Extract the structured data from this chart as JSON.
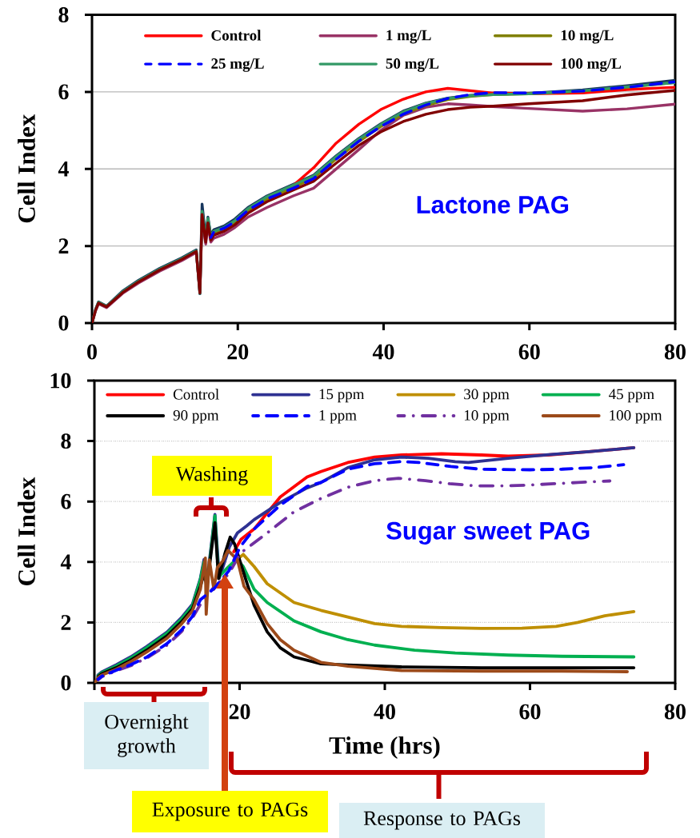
{
  "chart_data": [
    {
      "type": "line",
      "ylabel": "Cell Index",
      "annotations": [
        "Lactone PAG"
      ],
      "x": [
        0,
        0.5,
        0.9,
        2,
        4.2,
        6.4,
        9.3,
        12.3,
        14.3,
        14.8,
        15.1,
        15.6,
        15.9,
        16.3,
        16.7,
        18.1,
        19.6,
        21.4,
        24,
        27.6,
        30.4,
        33.5,
        36.6,
        39.6,
        42.7,
        45.8,
        48.8,
        51.9,
        55,
        59.9,
        67.3,
        73.4,
        80
      ],
      "series": [
        {
          "color": "#17365D",
          "values": [
            0,
            0.36,
            0.55,
            0.44,
            0.83,
            1.11,
            1.42,
            1.69,
            1.9,
            0.76,
            3.09,
            2.2,
            2.75,
            2.28,
            2.42,
            2.52,
            2.7,
            3.0,
            3.3,
            3.6,
            3.84,
            4.34,
            4.79,
            5.17,
            5.5,
            5.71,
            5.84,
            5.91,
            5.94,
            5.96,
            6.05,
            6.16,
            6.3
          ]
        },
        {
          "name": "Control",
          "color": "#FF0000",
          "values": [
            null,
            null,
            null,
            null,
            null,
            null,
            null,
            null,
            null,
            null,
            null,
            null,
            null,
            null,
            null,
            null,
            null,
            null,
            null,
            3.57,
            4.03,
            4.67,
            5.16,
            5.54,
            5.81,
            6.0,
            6.09,
            6.03,
            5.97,
            5.95,
            5.97,
            6.06,
            6.12
          ]
        },
        {
          "name": "1 mg/L",
          "color": "#993366",
          "values": [
            0,
            0.32,
            0.5,
            0.4,
            0.77,
            1.04,
            1.35,
            1.62,
            1.83,
            0.82,
            2.7,
            2.05,
            2.55,
            2.1,
            2.2,
            2.3,
            2.48,
            2.75,
            3.0,
            3.3,
            3.5,
            4.0,
            4.5,
            5.0,
            5.39,
            5.6,
            5.69,
            5.66,
            5.62,
            5.57,
            5.5,
            5.56,
            5.68
          ]
        },
        {
          "name": "10 mg/L",
          "color": "#808000",
          "values": [
            null,
            null,
            null,
            null,
            null,
            null,
            null,
            null,
            null,
            null,
            null,
            null,
            null,
            2.2,
            2.34,
            2.44,
            2.61,
            2.92,
            3.22,
            3.52,
            3.77,
            4.26,
            4.71,
            5.1,
            5.42,
            5.65,
            5.8,
            5.88,
            5.93,
            5.95,
            6.02,
            6.12,
            6.24
          ]
        },
        {
          "name": "25 mg/L",
          "color": "#0000FF",
          "line_style": "dashed",
          "values": [
            null,
            null,
            null,
            null,
            null,
            null,
            null,
            null,
            null,
            null,
            null,
            null,
            null,
            2.22,
            2.36,
            2.46,
            2.63,
            2.93,
            3.22,
            3.5,
            3.75,
            4.25,
            4.72,
            5.1,
            5.42,
            5.66,
            5.83,
            5.93,
            5.98,
            5.97,
            6.02,
            6.12,
            6.26
          ]
        },
        {
          "name": "50 mg/L",
          "color": "#339966",
          "values": [
            0,
            0.35,
            0.54,
            0.43,
            0.81,
            1.09,
            1.4,
            1.67,
            1.88,
            0.77,
            2.9,
            2.17,
            2.72,
            2.24,
            2.38,
            2.48,
            2.66,
            2.97,
            3.28,
            3.58,
            3.82,
            4.32,
            4.77,
            5.15,
            5.48,
            5.7,
            5.83,
            5.9,
            5.93,
            5.95,
            6.03,
            6.13,
            6.24
          ]
        },
        {
          "name": "100 mg/L",
          "color": "#800000",
          "values": [
            0,
            0.34,
            0.52,
            0.42,
            0.79,
            1.07,
            1.38,
            1.65,
            1.86,
            0.78,
            2.82,
            2.1,
            2.6,
            2.15,
            2.28,
            2.38,
            2.55,
            2.85,
            3.15,
            3.45,
            3.68,
            4.15,
            4.61,
            4.96,
            5.23,
            5.42,
            5.54,
            5.6,
            5.63,
            5.69,
            5.77,
            5.92,
            6.04
          ]
        }
      ],
      "xlim": [
        0,
        80
      ],
      "ylim": [
        0,
        8
      ],
      "xticks": [
        0,
        20,
        40,
        60,
        80
      ],
      "yticks": [
        0,
        2,
        4,
        6,
        8
      ],
      "grid": "y",
      "legend": "top"
    },
    {
      "type": "line",
      "xlabel": "Time (hrs)",
      "ylabel": "Cell Index",
      "annotations": [
        "Washing",
        "Sugar sweet PAG",
        "Overnight growth",
        "Exposure to PAGs",
        "Response to PAGs"
      ],
      "series": [
        {
          "name": "Control",
          "color": "#FF0000",
          "x": [
            19.2,
            20.2,
            22,
            25.6,
            29.3,
            31.2,
            34.9,
            38.6,
            42.3,
            47.8,
            53.3,
            57,
            62.5,
            68.1,
            74.3
          ],
          "values": [
            4.34,
            4.75,
            5.09,
            6.15,
            6.81,
            6.99,
            7.29,
            7.47,
            7.54,
            7.58,
            7.54,
            7.5,
            7.54,
            7.65,
            7.78
          ]
        },
        {
          "name": "15 ppm",
          "color": "#2E3192",
          "x": [
            0.5,
            1,
            3,
            5,
            7.2,
            10,
            12,
            13.5,
            14.6,
            15.1,
            15.5,
            16.6,
            17.2,
            18.6,
            19.7,
            21,
            22,
            25.6,
            29.3,
            31.2,
            34.9,
            38.6,
            42.3,
            46,
            49.7,
            51.5,
            53.3,
            57,
            62.5,
            68.1,
            74.3
          ],
          "values": [
            0.26,
            0.36,
            0.6,
            0.86,
            1.2,
            1.68,
            2.16,
            2.6,
            3.46,
            4.08,
            3.35,
            5.57,
            3.46,
            4.5,
            4.96,
            5.2,
            5.4,
            5.97,
            6.45,
            6.63,
            7.12,
            7.38,
            7.47,
            7.43,
            7.32,
            7.29,
            7.34,
            7.43,
            7.55,
            7.65,
            7.78
          ]
        },
        {
          "name": "30 ppm",
          "color": "#BF8F00",
          "x": [
            19.5,
            20.5,
            22,
            23.8,
            27.5,
            31.2,
            34.9,
            38.6,
            42.3,
            47.8,
            53.3,
            58.9,
            63.6,
            66.6,
            70.3,
            74.3
          ],
          "values": [
            4.05,
            4.25,
            3.85,
            3.28,
            2.66,
            2.4,
            2.18,
            1.96,
            1.87,
            1.83,
            1.8,
            1.81,
            1.87,
            2.0,
            2.22,
            2.36
          ]
        },
        {
          "name": "45 ppm",
          "color": "#00B050",
          "x": [
            0.5,
            1,
            3,
            5,
            7.2,
            10,
            12,
            13.5,
            14.6,
            15.1,
            15.5,
            16.6,
            17.1,
            18.3,
            19.6,
            20.5,
            22,
            23.8,
            27.5,
            31.2,
            34.9,
            38.6,
            44.1,
            49.7,
            57,
            64.4,
            74.3
          ],
          "values": [
            0.23,
            0.33,
            0.56,
            0.82,
            1.16,
            1.64,
            2.11,
            2.55,
            3.42,
            4.0,
            3.2,
            5.53,
            3.5,
            3.8,
            4.1,
            3.85,
            3.1,
            2.66,
            2.05,
            1.69,
            1.43,
            1.25,
            1.08,
            0.99,
            0.92,
            0.88,
            0.86
          ]
        },
        {
          "name": "90 ppm",
          "color": "#000000",
          "x": [
            0.5,
            1,
            3,
            5,
            7.2,
            10,
            12,
            13.5,
            14.6,
            15.1,
            15.5,
            16.6,
            17.1,
            18,
            18.7,
            19.3,
            20.8,
            22,
            23.8,
            25.6,
            27.5,
            31.2,
            34.9,
            42.3,
            53.3,
            64.4,
            74.3
          ],
          "values": [
            0.2,
            0.3,
            0.5,
            0.75,
            1.08,
            1.55,
            2.02,
            2.45,
            3.2,
            3.6,
            3.2,
            5.3,
            3.45,
            4.3,
            4.82,
            4.6,
            3.46,
            2.57,
            1.69,
            1.16,
            0.86,
            0.63,
            0.59,
            0.53,
            0.5,
            0.5,
            0.5
          ]
        },
        {
          "name": "1 ppm",
          "color": "#0000FF",
          "line_style": "dashed",
          "x": [
            0.5,
            1,
            3,
            5,
            7.2,
            10,
            12,
            13.5,
            14.6,
            16.6,
            18.5,
            20.1,
            22,
            25.6,
            29.3,
            31.2,
            34.9,
            38.6,
            42.3,
            44.7,
            49.1,
            53.2,
            60,
            64.4,
            68.8,
            72.9
          ],
          "values": [
            0.12,
            0.22,
            0.42,
            0.6,
            0.85,
            1.3,
            1.75,
            2.2,
            2.75,
            3.15,
            3.7,
            4.51,
            5.09,
            5.88,
            6.5,
            6.63,
            7.07,
            7.25,
            7.32,
            7.29,
            7.16,
            7.07,
            7.05,
            7.07,
            7.12,
            7.22
          ]
        },
        {
          "name": "10 ppm",
          "color": "#7030A0",
          "line_style": "dashdot",
          "x": [
            0.5,
            1,
            3,
            5,
            7.2,
            10,
            12,
            13.5,
            14.6,
            16.4,
            18.5,
            20.1,
            23.8,
            27.5,
            31.2,
            34.9,
            38.6,
            41.9,
            45.6,
            48.9,
            52.6,
            56.3,
            59.6,
            63.3,
            66.6,
            71
          ],
          "values": [
            0.1,
            0.2,
            0.4,
            0.57,
            0.82,
            1.25,
            1.7,
            2.15,
            2.6,
            3.15,
            3.6,
            4.29,
            4.96,
            5.66,
            6.1,
            6.47,
            6.69,
            6.77,
            6.69,
            6.59,
            6.52,
            6.52,
            6.54,
            6.59,
            6.63,
            6.68
          ]
        },
        {
          "name": "100 ppm",
          "color": "#9C4A1A",
          "x": [
            0,
            0.5,
            1,
            3,
            5,
            7.2,
            10,
            12,
            13.5,
            14.6,
            15.28,
            15.4,
            15.83,
            16.45,
            16.93,
            17.67,
            18.4,
            19.7,
            20.6,
            22,
            23.8,
            25.6,
            27.5,
            31.2,
            34.9,
            38.6,
            42.3,
            53.3,
            64.4,
            73.4
          ],
          "values": [
            0,
            0.17,
            0.26,
            0.45,
            0.7,
            1.02,
            1.48,
            1.95,
            2.38,
            3.1,
            4.13,
            2.27,
            4.07,
            3.1,
            3.81,
            4.03,
            4.38,
            4.07,
            3.2,
            2.75,
            1.96,
            1.43,
            1.08,
            0.68,
            0.55,
            0.48,
            0.41,
            0.39,
            0.39,
            0.37
          ]
        }
      ],
      "xlim": [
        0,
        80
      ],
      "ylim": [
        0,
        10
      ],
      "xticks": [
        {
          "value": 0,
          "label": null
        },
        20,
        40,
        60,
        80
      ],
      "yticks": [
        0,
        2,
        4,
        6,
        8,
        10
      ],
      "grid": "y",
      "legend": "top"
    }
  ]
}
